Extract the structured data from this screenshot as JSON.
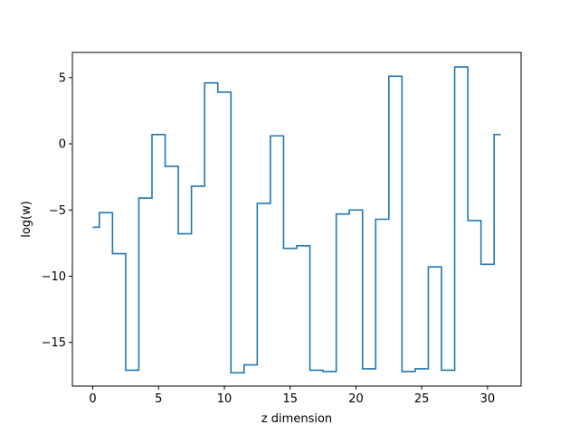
{
  "chart_data": {
    "type": "line",
    "drawstyle": "steps-mid",
    "title": "",
    "xlabel": "z dimension",
    "ylabel": "log(w)",
    "xlim": [
      -1.55,
      32.55
    ],
    "ylim": [
      -18.3,
      6.9
    ],
    "xticks": [
      0,
      5,
      10,
      15,
      20,
      25,
      30
    ],
    "yticks": [
      5,
      0,
      -5,
      -10,
      -15
    ],
    "ytick_labels": [
      "5",
      "0",
      "−5",
      "−10",
      "−15"
    ],
    "grid": false,
    "line_color": "#1f77b4",
    "series": [
      {
        "x": [
          0,
          1,
          2,
          3,
          4,
          5,
          6,
          7,
          8,
          9,
          10,
          11,
          12,
          13,
          14,
          15,
          16,
          17,
          18,
          19,
          20,
          21,
          22,
          23,
          24,
          25,
          26,
          27,
          28,
          29,
          30,
          31
        ],
        "values": [
          -6.3,
          -5.2,
          -8.3,
          -17.1,
          -4.1,
          0.7,
          -1.7,
          -6.8,
          -3.2,
          4.6,
          3.9,
          -17.3,
          -16.7,
          -4.5,
          0.6,
          -7.9,
          -7.7,
          -17.1,
          -17.2,
          -5.3,
          -5.0,
          -17.0,
          -5.7,
          5.1,
          -17.2,
          -17.0,
          -9.3,
          -17.1,
          5.8,
          -5.8,
          -9.1,
          0.7
        ]
      }
    ]
  }
}
